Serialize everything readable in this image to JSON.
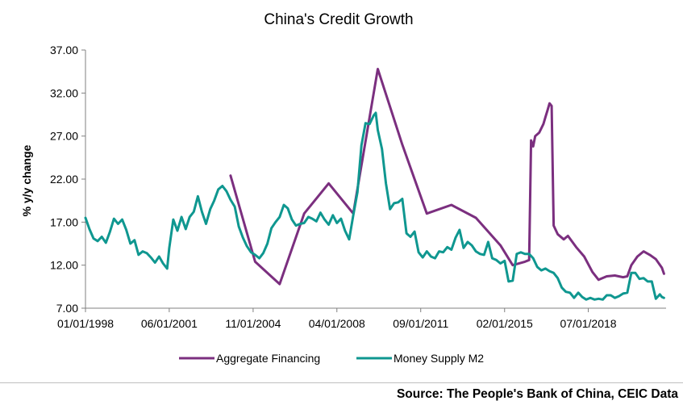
{
  "source": "Source: The People's Bank of China, CEIC Data",
  "colors": {
    "aggregate": "#7b2f7f",
    "m2": "#0f9790",
    "axis": "#808080"
  },
  "chart_data": {
    "type": "line",
    "title": "China's Credit Growth",
    "xlabel": "",
    "ylabel": "% y/y change",
    "ylim": [
      7.0,
      37.0
    ],
    "y_ticks": [
      "7.00",
      "12.00",
      "17.00",
      "22.00",
      "27.00",
      "32.00",
      "37.00"
    ],
    "x_range": [
      "1998-01-01",
      "2021-09-01"
    ],
    "x_ticks": [
      "01/01/1998",
      "06/01/2001",
      "11/01/2004",
      "04/01/2008",
      "09/01/2011",
      "02/01/2015",
      "07/01/2018"
    ],
    "grid": false,
    "legend_position": "bottom",
    "series": [
      {
        "name": "Aggregate Financing",
        "color_key": "aggregate",
        "points": [
          [
            "2003-12-01",
            22.4
          ],
          [
            "2004-12-01",
            12.4
          ],
          [
            "2005-12-01",
            9.8
          ],
          [
            "2006-12-01",
            18.0
          ],
          [
            "2007-12-01",
            21.5
          ],
          [
            "2008-12-01",
            18.0
          ],
          [
            "2009-12-01",
            34.8
          ],
          [
            "2010-12-01",
            26.0
          ],
          [
            "2011-12-01",
            18.0
          ],
          [
            "2012-12-01",
            19.0
          ],
          [
            "2013-12-01",
            17.5
          ],
          [
            "2014-12-01",
            14.3
          ],
          [
            "2015-06-01",
            12.0
          ],
          [
            "2015-12-01",
            12.4
          ],
          [
            "2016-02-01",
            12.6
          ],
          [
            "2016-03-01",
            26.5
          ],
          [
            "2016-04-01",
            25.8
          ],
          [
            "2016-05-01",
            27.0
          ],
          [
            "2016-07-01",
            27.4
          ],
          [
            "2016-09-01",
            28.4
          ],
          [
            "2016-10-01",
            29.2
          ],
          [
            "2016-11-01",
            30.0
          ],
          [
            "2016-12-01",
            30.8
          ],
          [
            "2017-01-01",
            30.5
          ],
          [
            "2017-02-01",
            16.6
          ],
          [
            "2017-04-01",
            15.6
          ],
          [
            "2017-07-01",
            15.0
          ],
          [
            "2017-09-01",
            15.4
          ],
          [
            "2018-01-01",
            14.1
          ],
          [
            "2018-05-01",
            13.0
          ],
          [
            "2018-09-01",
            11.2
          ],
          [
            "2018-12-01",
            10.3
          ],
          [
            "2019-04-01",
            10.7
          ],
          [
            "2019-08-01",
            10.8
          ],
          [
            "2019-12-01",
            10.6
          ],
          [
            "2020-02-01",
            10.7
          ],
          [
            "2020-04-01",
            12.0
          ],
          [
            "2020-07-01",
            13.0
          ],
          [
            "2020-10-01",
            13.6
          ],
          [
            "2021-01-01",
            13.2
          ],
          [
            "2021-04-01",
            12.7
          ],
          [
            "2021-07-01",
            11.7
          ],
          [
            "2021-08-01",
            11.0
          ]
        ]
      },
      {
        "name": "Money Supply M2",
        "color_key": "m2",
        "points": [
          [
            "1998-01-01",
            17.5
          ],
          [
            "1998-03-01",
            16.2
          ],
          [
            "1998-05-01",
            15.1
          ],
          [
            "1998-07-01",
            14.8
          ],
          [
            "1998-09-01",
            15.3
          ],
          [
            "1998-11-01",
            14.6
          ],
          [
            "1999-01-01",
            15.9
          ],
          [
            "1999-03-01",
            17.4
          ],
          [
            "1999-05-01",
            16.8
          ],
          [
            "1999-07-01",
            17.3
          ],
          [
            "1999-09-01",
            16.1
          ],
          [
            "1999-11-01",
            14.5
          ],
          [
            "2000-01-01",
            14.9
          ],
          [
            "2000-03-01",
            13.2
          ],
          [
            "2000-05-01",
            13.6
          ],
          [
            "2000-07-01",
            13.4
          ],
          [
            "2000-09-01",
            12.9
          ],
          [
            "2000-11-01",
            12.3
          ],
          [
            "2001-01-01",
            13.0
          ],
          [
            "2001-03-01",
            12.2
          ],
          [
            "2001-05-01",
            11.6
          ],
          [
            "2001-06-01",
            14.0
          ],
          [
            "2001-08-01",
            17.3
          ],
          [
            "2001-10-01",
            16.0
          ],
          [
            "2001-12-01",
            17.6
          ],
          [
            "2002-02-01",
            16.2
          ],
          [
            "2002-04-01",
            17.6
          ],
          [
            "2002-06-01",
            18.2
          ],
          [
            "2002-08-01",
            20.0
          ],
          [
            "2002-10-01",
            18.2
          ],
          [
            "2002-12-01",
            16.8
          ],
          [
            "2003-02-01",
            18.5
          ],
          [
            "2003-04-01",
            19.5
          ],
          [
            "2003-06-01",
            20.8
          ],
          [
            "2003-08-01",
            21.2
          ],
          [
            "2003-10-01",
            20.6
          ],
          [
            "2003-12-01",
            19.6
          ],
          [
            "2004-02-01",
            18.8
          ],
          [
            "2004-04-01",
            16.5
          ],
          [
            "2004-06-01",
            15.2
          ],
          [
            "2004-08-01",
            14.2
          ],
          [
            "2004-10-01",
            13.5
          ],
          [
            "2004-12-01",
            13.2
          ],
          [
            "2005-02-01",
            12.8
          ],
          [
            "2005-04-01",
            13.4
          ],
          [
            "2005-06-01",
            14.5
          ],
          [
            "2005-08-01",
            16.3
          ],
          [
            "2005-10-01",
            17.0
          ],
          [
            "2005-12-01",
            17.6
          ],
          [
            "2006-02-01",
            19.0
          ],
          [
            "2006-04-01",
            18.6
          ],
          [
            "2006-06-01",
            17.3
          ],
          [
            "2006-08-01",
            16.6
          ],
          [
            "2006-10-01",
            16.8
          ],
          [
            "2006-12-01",
            16.9
          ],
          [
            "2007-02-01",
            17.6
          ],
          [
            "2007-04-01",
            17.4
          ],
          [
            "2007-06-01",
            17.1
          ],
          [
            "2007-08-01",
            18.1
          ],
          [
            "2007-10-01",
            17.3
          ],
          [
            "2007-12-01",
            16.7
          ],
          [
            "2008-02-01",
            17.8
          ],
          [
            "2008-04-01",
            16.9
          ],
          [
            "2008-06-01",
            17.4
          ],
          [
            "2008-08-01",
            16.0
          ],
          [
            "2008-10-01",
            15.0
          ],
          [
            "2008-12-01",
            17.8
          ],
          [
            "2009-02-01",
            20.5
          ],
          [
            "2009-04-01",
            25.9
          ],
          [
            "2009-06-01",
            28.5
          ],
          [
            "2009-08-01",
            28.4
          ],
          [
            "2009-10-01",
            29.4
          ],
          [
            "2009-11-01",
            29.7
          ],
          [
            "2009-12-01",
            27.7
          ],
          [
            "2010-02-01",
            25.5
          ],
          [
            "2010-04-01",
            21.5
          ],
          [
            "2010-06-01",
            18.5
          ],
          [
            "2010-08-01",
            19.2
          ],
          [
            "2010-10-01",
            19.3
          ],
          [
            "2010-12-01",
            19.7
          ],
          [
            "2011-02-01",
            15.7
          ],
          [
            "2011-04-01",
            15.3
          ],
          [
            "2011-06-01",
            15.9
          ],
          [
            "2011-08-01",
            13.5
          ],
          [
            "2011-10-01",
            12.9
          ],
          [
            "2011-12-01",
            13.6
          ],
          [
            "2012-02-01",
            13.0
          ],
          [
            "2012-04-01",
            12.8
          ],
          [
            "2012-06-01",
            13.6
          ],
          [
            "2012-08-01",
            13.5
          ],
          [
            "2012-10-01",
            14.1
          ],
          [
            "2012-12-01",
            13.8
          ],
          [
            "2013-02-01",
            15.2
          ],
          [
            "2013-04-01",
            16.1
          ],
          [
            "2013-06-01",
            14.0
          ],
          [
            "2013-08-01",
            14.7
          ],
          [
            "2013-10-01",
            14.3
          ],
          [
            "2013-12-01",
            13.6
          ],
          [
            "2014-02-01",
            13.3
          ],
          [
            "2014-04-01",
            13.2
          ],
          [
            "2014-06-01",
            14.7
          ],
          [
            "2014-08-01",
            12.8
          ],
          [
            "2014-10-01",
            12.6
          ],
          [
            "2014-12-01",
            12.2
          ],
          [
            "2015-02-01",
            12.5
          ],
          [
            "2015-04-01",
            10.1
          ],
          [
            "2015-06-01",
            10.2
          ],
          [
            "2015-08-01",
            13.3
          ],
          [
            "2015-10-01",
            13.5
          ],
          [
            "2015-12-01",
            13.3
          ],
          [
            "2016-02-01",
            13.3
          ],
          [
            "2016-04-01",
            12.8
          ],
          [
            "2016-06-01",
            11.8
          ],
          [
            "2016-08-01",
            11.4
          ],
          [
            "2016-10-01",
            11.6
          ],
          [
            "2016-12-01",
            11.3
          ],
          [
            "2017-02-01",
            11.1
          ],
          [
            "2017-04-01",
            10.5
          ],
          [
            "2017-06-01",
            9.4
          ],
          [
            "2017-08-01",
            8.9
          ],
          [
            "2017-10-01",
            8.8
          ],
          [
            "2017-12-01",
            8.2
          ],
          [
            "2018-02-01",
            8.8
          ],
          [
            "2018-04-01",
            8.3
          ],
          [
            "2018-06-01",
            8.0
          ],
          [
            "2018-08-01",
            8.2
          ],
          [
            "2018-10-01",
            8.0
          ],
          [
            "2018-12-01",
            8.1
          ],
          [
            "2019-02-01",
            8.0
          ],
          [
            "2019-04-01",
            8.5
          ],
          [
            "2019-06-01",
            8.5
          ],
          [
            "2019-08-01",
            8.2
          ],
          [
            "2019-10-01",
            8.4
          ],
          [
            "2019-12-01",
            8.7
          ],
          [
            "2020-02-01",
            8.8
          ],
          [
            "2020-04-01",
            11.1
          ],
          [
            "2020-06-01",
            11.1
          ],
          [
            "2020-08-01",
            10.4
          ],
          [
            "2020-10-01",
            10.5
          ],
          [
            "2020-12-01",
            10.1
          ],
          [
            "2021-02-01",
            10.1
          ],
          [
            "2021-04-01",
            8.1
          ],
          [
            "2021-06-01",
            8.6
          ],
          [
            "2021-07-01",
            8.3
          ],
          [
            "2021-08-01",
            8.2
          ]
        ]
      }
    ]
  }
}
